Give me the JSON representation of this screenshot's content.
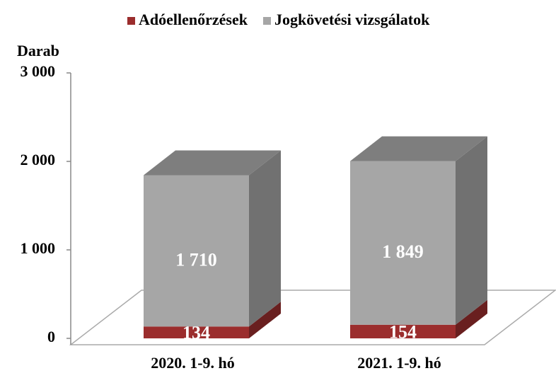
{
  "chart_data": {
    "type": "bar3d_stacked",
    "y_label": "Darab",
    "categories": [
      "2020. 1-9. hó",
      "2021. 1-9. hó"
    ],
    "series": [
      {
        "name": "Adóellenőrzések",
        "color": "#9b2d2d",
        "values": [
          134,
          154
        ]
      },
      {
        "name": "Jogkövetési vizsgálatok",
        "color": "#a6a6a6",
        "values": [
          1710,
          1849
        ],
        "value_labels": [
          "1 710",
          "1 849"
        ]
      }
    ],
    "ylim": [
      0,
      3000
    ],
    "yticks": [
      {
        "value": 0,
        "label": "0"
      },
      {
        "value": 1000,
        "label": "1 000"
      },
      {
        "value": 2000,
        "label": "2 000"
      },
      {
        "value": 3000,
        "label": "3 000"
      }
    ],
    "legend": "top"
  }
}
